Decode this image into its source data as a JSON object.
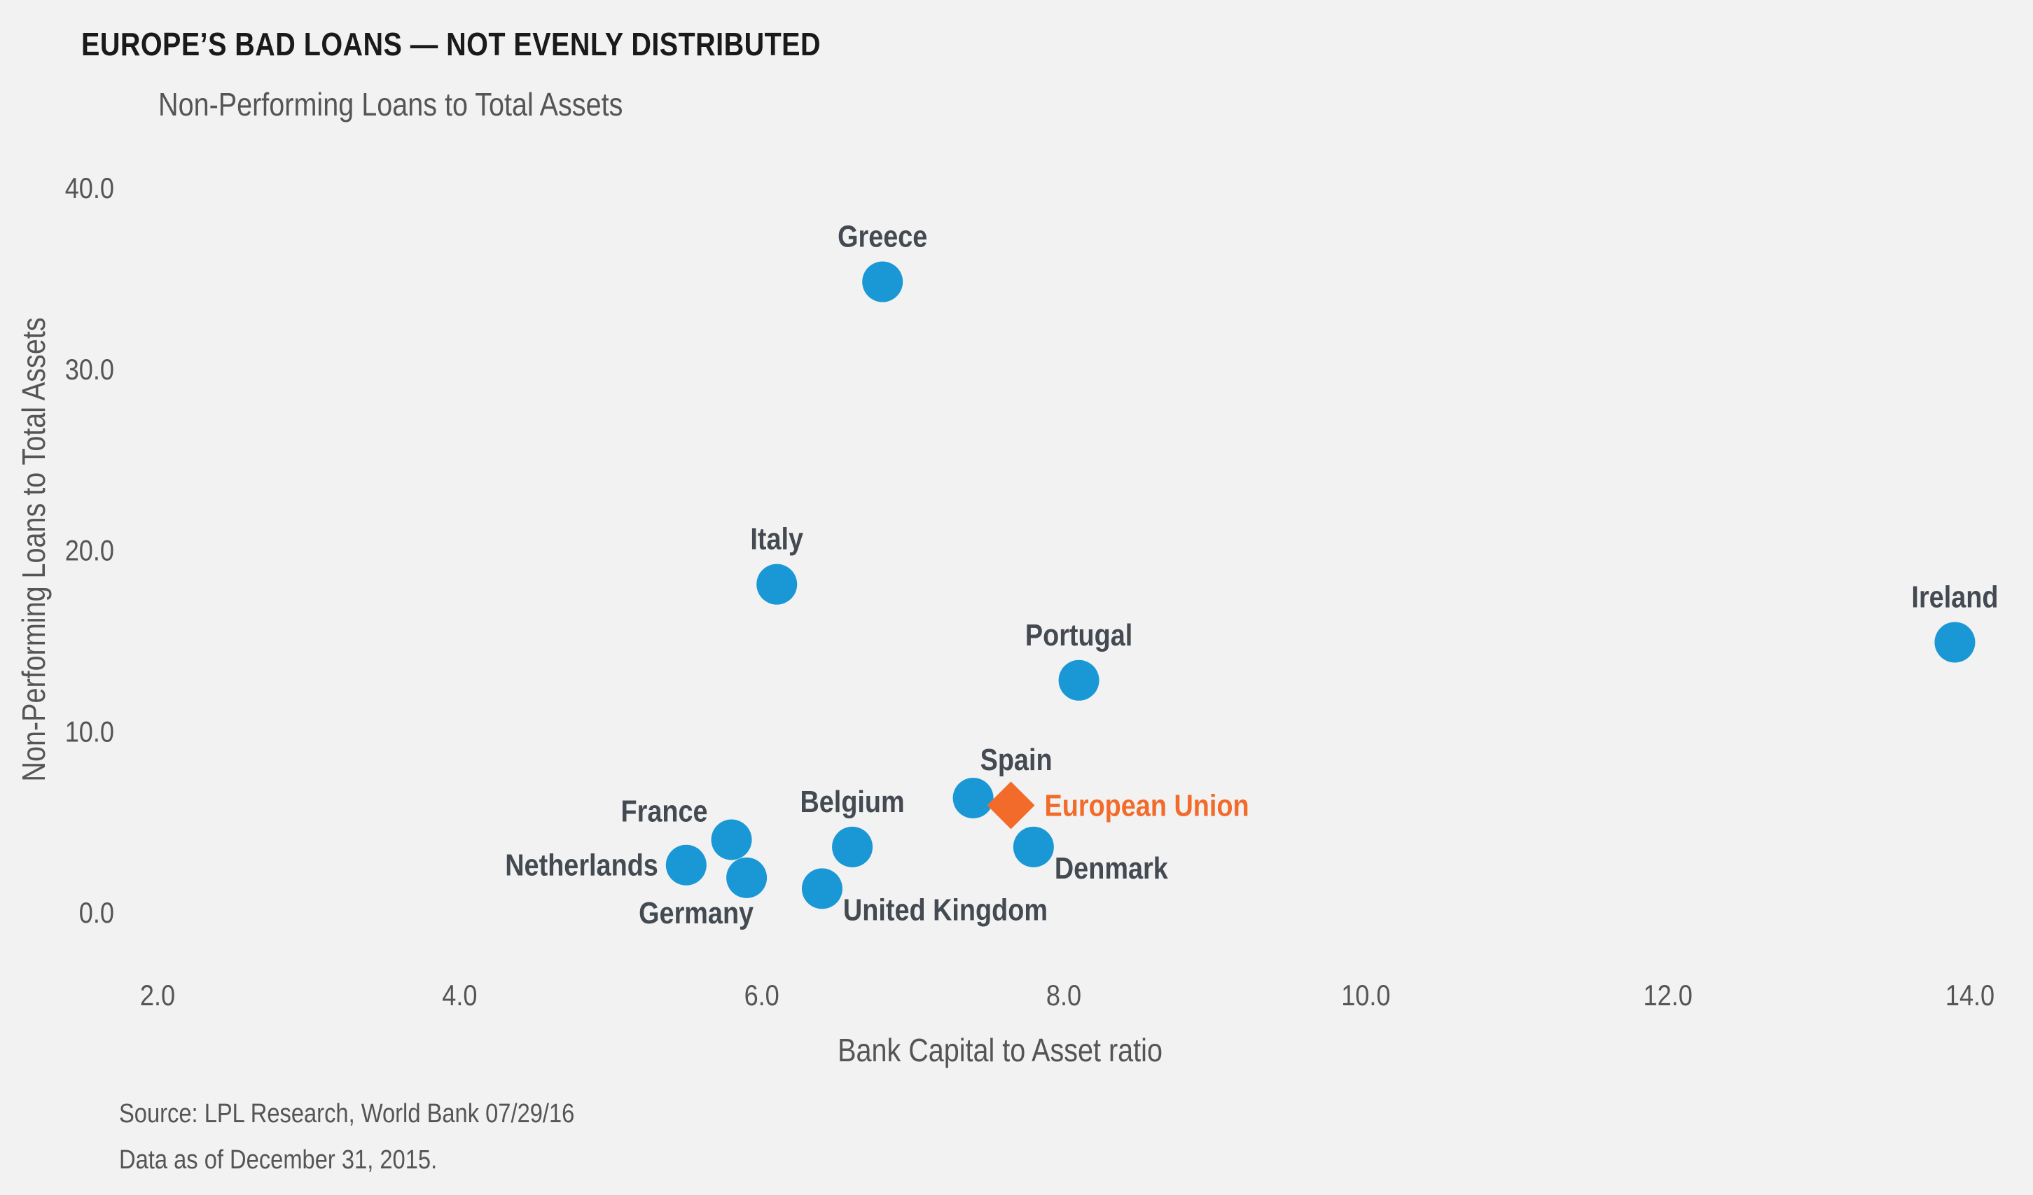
{
  "title": "EUROPE’S BAD LOANS — NOT EVENLY DISTRIBUTED",
  "subtitle": "Non-Performing Loans to Total Assets",
  "source": "Source: LPL Research, World Bank   07/29/16",
  "as_of": "Data as of December 31, 2015.",
  "colors": {
    "point": "#1a98d5",
    "highlight": "#f26b2a",
    "label": "#444a52",
    "tick": "#555555"
  },
  "chart_data": {
    "type": "scatter",
    "xlabel": "Bank Capital to Asset ratio",
    "ylabel": "Non-Performing Loans to Total Assets",
    "xlim": [
      2.0,
      14.0
    ],
    "ylim": [
      0.0,
      40.0
    ],
    "x_ticks": [
      "2.0",
      "4.0",
      "6.0",
      "8.0",
      "10.0",
      "12.0",
      "14.0"
    ],
    "y_ticks": [
      "0.0",
      "10.0",
      "20.0",
      "30.0",
      "40.0"
    ],
    "grid": false,
    "legend": "none",
    "points": [
      {
        "label": "Greece",
        "x": 6.8,
        "y": 34.8,
        "label_pos": "top"
      },
      {
        "label": "Italy",
        "x": 6.1,
        "y": 18.1,
        "label_pos": "top"
      },
      {
        "label": "Ireland",
        "x": 13.9,
        "y": 14.9,
        "label_pos": "top"
      },
      {
        "label": "Portugal",
        "x": 8.1,
        "y": 12.8,
        "label_pos": "top"
      },
      {
        "label": "Spain",
        "x": 7.4,
        "y": 6.3,
        "label_pos": "top-right"
      },
      {
        "label": "France",
        "x": 5.8,
        "y": 4.0,
        "label_pos": "left-top"
      },
      {
        "label": "Belgium",
        "x": 6.6,
        "y": 3.6,
        "label_pos": "top"
      },
      {
        "label": "Denmark",
        "x": 7.8,
        "y": 3.6,
        "label_pos": "bottom-right"
      },
      {
        "label": "Netherlands",
        "x": 5.5,
        "y": 2.6,
        "label_pos": "left"
      },
      {
        "label": "Germany",
        "x": 5.9,
        "y": 1.9,
        "label_pos": "bottom-left"
      },
      {
        "label": "United Kingdom",
        "x": 6.4,
        "y": 1.3,
        "label_pos": "bottom-right"
      },
      {
        "label": "European Union",
        "x": 7.65,
        "y": 5.9,
        "label_pos": "right",
        "marker": "diamond",
        "highlight": true
      }
    ]
  }
}
